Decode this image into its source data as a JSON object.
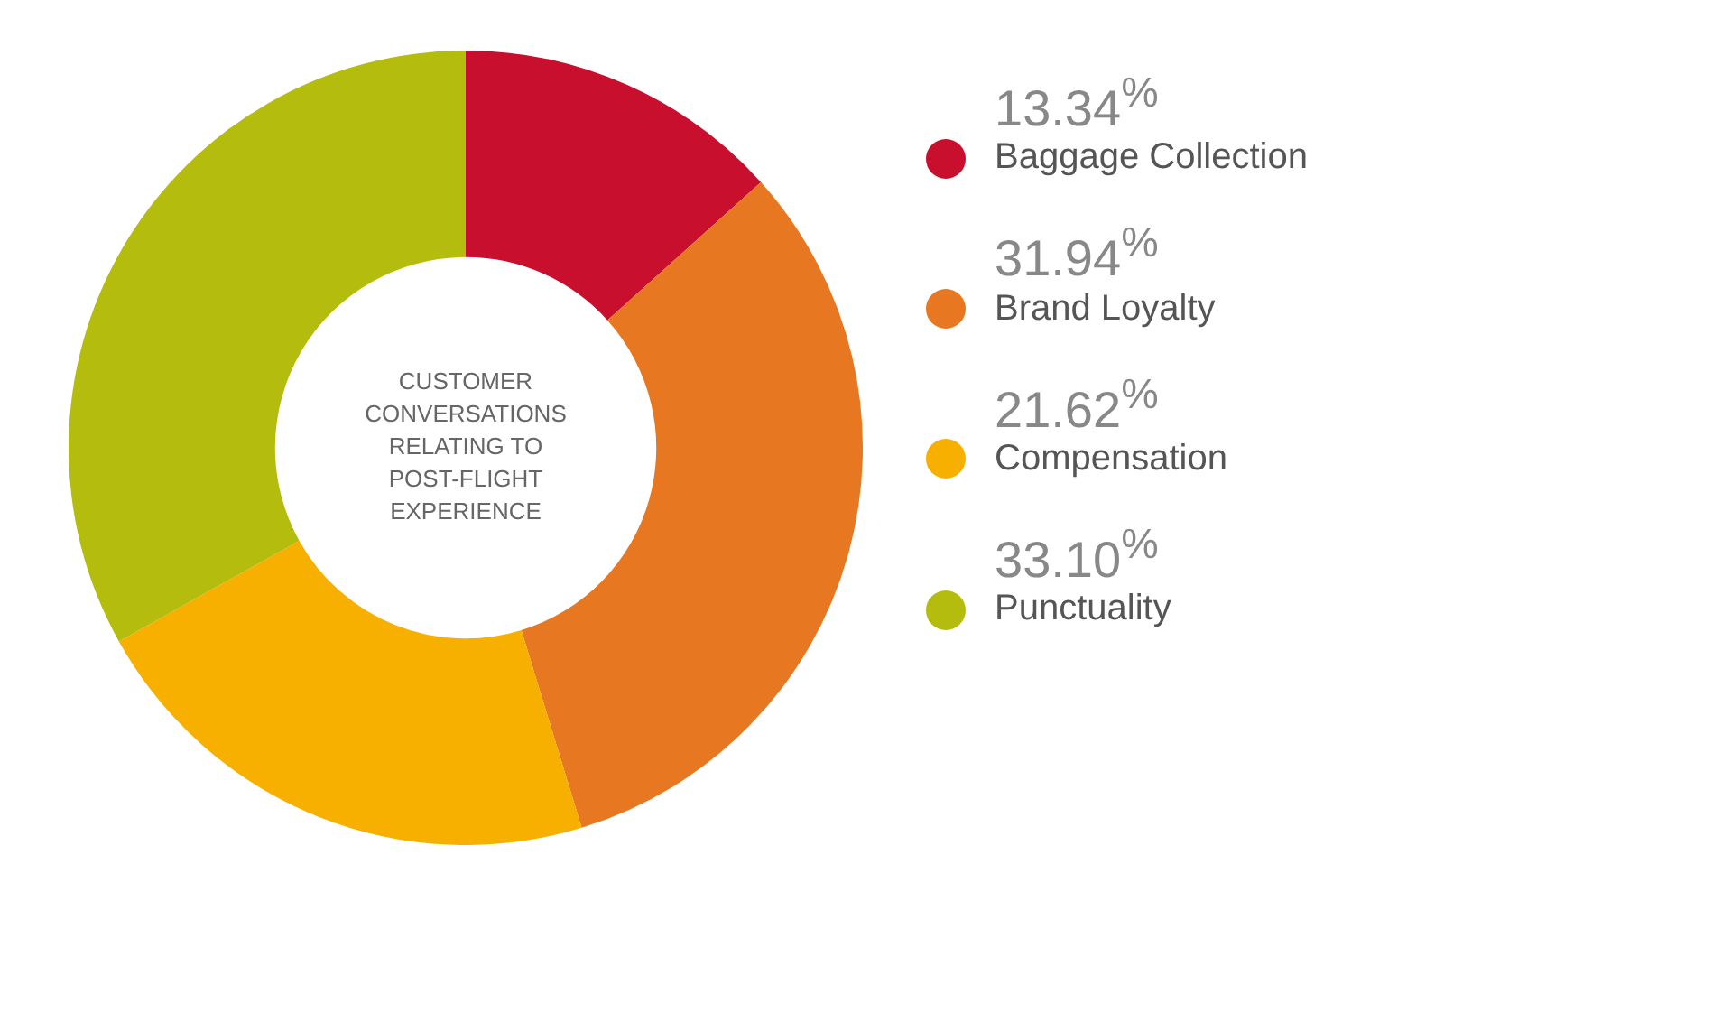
{
  "chart_data": {
    "type": "donut",
    "annotations": [
      "CUSTOMER",
      "CONVERSATIONS",
      "RELATING TO",
      "POST-FLIGHT",
      "EXPERIENCE"
    ],
    "categories": [
      "Baggage Collection",
      "Brand Loyalty",
      "Compensation",
      "Punctuality"
    ],
    "values": [
      13.34,
      31.94,
      21.62,
      33.1
    ],
    "colors": [
      "#c8102e",
      "#e87722",
      "#f7b000",
      "#b4bc0e"
    ],
    "value_labels": [
      "13.34$^{%}$",
      "31.94$^{%}$",
      "21.62$^{%}$",
      "33.10$^{%}$"
    ],
    "legend": "right"
  }
}
